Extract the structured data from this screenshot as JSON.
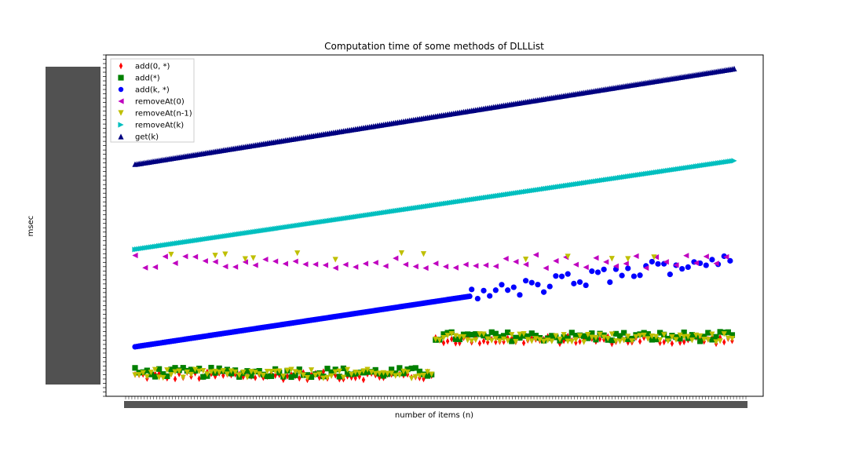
{
  "chart_data": {
    "type": "scatter",
    "title": "Computation time of some methods of DLLList",
    "xlabel": "number of items (n)",
    "ylabel": "msec",
    "legend_position": "top-left",
    "grid": false,
    "x_tick_label_text": "8(9): (overlapping, illegible tick labels)",
    "y_tick_label_text": "(overlapping, illegible tick labels)",
    "x": {
      "count": 300,
      "note_visible": "tick labels overlap and are unreadable"
    },
    "ylim": [
      0,
      1
    ],
    "series": [
      {
        "name": "add(0, *)",
        "marker": "diamond",
        "color": "#ff0000",
        "trend": "noise_low_step",
        "base": 0.06,
        "step": 0.105,
        "noise": 0.012
      },
      {
        "name": "add(*)",
        "marker": "square",
        "color": "#008000",
        "trend": "noise_low_step",
        "base": 0.07,
        "step": 0.105,
        "noise": 0.014
      },
      {
        "name": "add(k, *)",
        "marker": "circle",
        "color": "#0000ff",
        "trend": "linear_then_noisy",
        "start": 0.145,
        "end": 0.41,
        "noisy_from": 0.56
      },
      {
        "name": "removeAt(0)",
        "marker": "triangle-left",
        "color": "#bf00bf",
        "trend": "noise_mid",
        "base": 0.385,
        "noise": 0.01
      },
      {
        "name": "removeAt(n-1)",
        "marker": "triangle-down",
        "color": "#bfbf00",
        "trend": "noise_low_step",
        "base": 0.065,
        "step": 0.105,
        "noise": 0.013
      },
      {
        "name": "removeAt(k)",
        "marker": "triangle-right",
        "color": "#00bfbf",
        "trend": "linear",
        "start": 0.43,
        "end": 0.69
      },
      {
        "name": "get(k)",
        "marker": "triangle-up",
        "color": "#000080",
        "trend": "linear",
        "start": 0.68,
        "end": 0.96
      }
    ]
  }
}
